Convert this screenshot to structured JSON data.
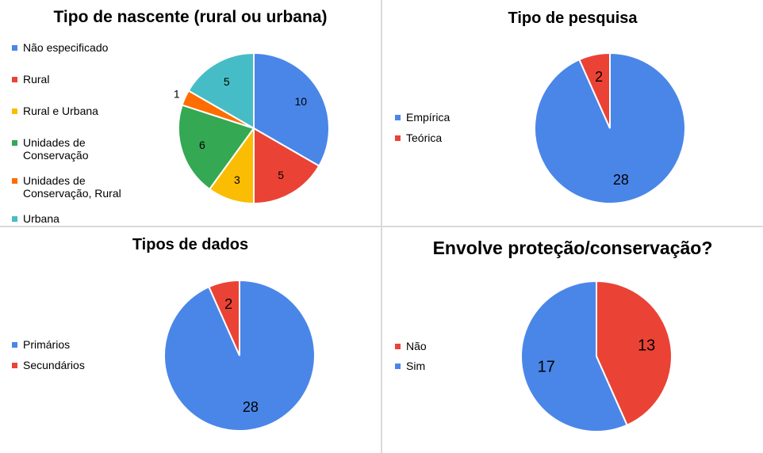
{
  "chart_data": [
    {
      "type": "pie",
      "title": "Tipo de nascente (rural ou urbana)",
      "categories": [
        "Não especificado",
        "Rural",
        "Rural e Urbana",
        "Unidades de Conservação",
        "Unidades de Conservação, Rural",
        "Urbana"
      ],
      "legend_lines": [
        [
          "Não especificado"
        ],
        [
          "Rural"
        ],
        [
          "Rural e Urbana"
        ],
        [
          "Unidades de",
          "Conservação"
        ],
        [
          "Unidades de",
          "Conservação, Rural"
        ],
        [
          "Urbana"
        ]
      ],
      "values": [
        10,
        5,
        3,
        6,
        1,
        5
      ],
      "colors": [
        "#4a86e8",
        "#ea4335",
        "#fbbc04",
        "#34a853",
        "#ff6d01",
        "#46bdc6"
      ],
      "legend_placement": "left"
    },
    {
      "type": "pie",
      "title": "Tipo de pesquisa",
      "categories": [
        "Empírica",
        "Teórica"
      ],
      "legend_lines": [
        [
          "Empírica"
        ],
        [
          "Teórica"
        ]
      ],
      "values": [
        28,
        2
      ],
      "colors": [
        "#4a86e8",
        "#ea4335"
      ],
      "legend_placement": "left"
    },
    {
      "type": "pie",
      "title": "Tipos de dados",
      "categories": [
        "Primários",
        "Secundários"
      ],
      "legend_lines": [
        [
          "Primários"
        ],
        [
          "Secundários"
        ]
      ],
      "values": [
        28,
        2
      ],
      "colors": [
        "#4a86e8",
        "#ea4335"
      ],
      "legend_placement": "left"
    },
    {
      "type": "pie",
      "title": "Envolve proteção/conservação?",
      "categories": [
        "Não",
        "Sim"
      ],
      "legend_lines": [
        [
          "Não"
        ],
        [
          "Sim"
        ]
      ],
      "values": [
        13,
        17
      ],
      "colors": [
        "#ea4335",
        "#4a86e8"
      ],
      "legend_placement": "left"
    }
  ]
}
